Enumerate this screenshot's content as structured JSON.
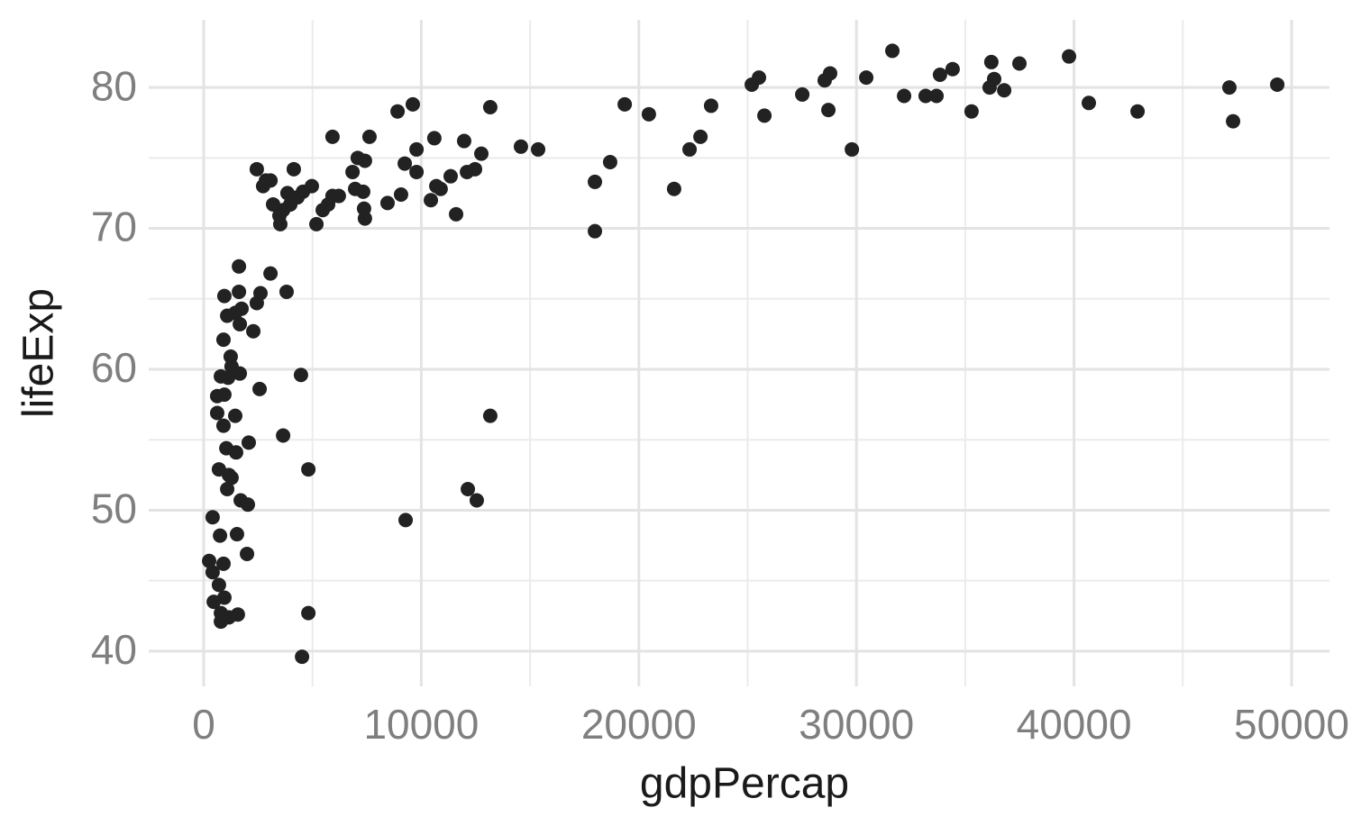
{
  "chart_data": {
    "type": "scatter",
    "xlabel": "gdpPercap",
    "ylabel": "lifeExp",
    "color": "#222222",
    "grid": true,
    "xlim": [
      -2527,
      51740
    ],
    "ylim": [
      37.5,
      84.8
    ],
    "xticks": [
      0,
      10000,
      20000,
      30000,
      40000,
      50000
    ],
    "yticks": [
      40,
      50,
      60,
      70,
      80
    ],
    "xminor": [
      5000,
      15000,
      25000,
      35000,
      45000
    ],
    "yminor": [
      45,
      55,
      65,
      75
    ],
    "x": [
      31650,
      39770,
      37490,
      36200,
      34420,
      33840,
      30450,
      28790,
      28540,
      25520,
      25190,
      27510,
      32190,
      33180,
      33680,
      36330,
      36120,
      36790,
      35290,
      40680,
      42920,
      47140,
      49340,
      47310,
      28710,
      25770,
      23320,
      22830,
      22330,
      29790,
      21620,
      20460,
      19350,
      18680,
      17980,
      17980,
      15370,
      14580,
      13170,
      12760,
      12470,
      12100,
      11970,
      11600,
      11350,
      10890,
      10690,
      10440,
      10600,
      9780,
      9780,
      9610,
      9240,
      8910,
      9070,
      8450,
      7620,
      7410,
      7080,
      6840,
      6960,
      7330,
      7370,
      7410,
      5920,
      6210,
      5920,
      5720,
      5470,
      4970,
      5180,
      4560,
      4140,
      4310,
      3850,
      3980,
      3650,
      3480,
      3520,
      3070,
      3190,
      2730,
      2860,
      2440,
      3070,
      3810,
      1620,
      2610,
      2440,
      1620,
      950,
      1080,
      1450,
      1740,
      1660,
      2280,
      910,
      1240,
      1280,
      790,
      1120,
      1660,
      4470,
      2570,
      620,
      950,
      620,
      1450,
      13170,
      910,
      3650,
      2070,
      1040,
      1490,
      700,
      4810,
      1160,
      1280,
      1080,
      12140,
      12550,
      1700,
      2030,
      410,
      9280,
      750,
      1530,
      1990,
      250,
      910,
      410,
      700,
      950,
      460,
      790,
      4810,
      1160,
      1570,
      790,
      4520
    ],
    "y": [
      82.6,
      82.2,
      81.7,
      81.8,
      81.3,
      80.9,
      80.7,
      81.0,
      80.5,
      80.7,
      80.2,
      79.5,
      79.4,
      79.4,
      79.4,
      80.6,
      80.0,
      79.8,
      78.3,
      78.9,
      78.3,
      80.0,
      80.2,
      77.6,
      78.4,
      78.0,
      78.7,
      76.5,
      75.6,
      75.6,
      72.8,
      78.1,
      78.8,
      74.7,
      73.3,
      69.8,
      75.6,
      75.8,
      78.6,
      75.3,
      74.2,
      74.0,
      76.2,
      71.0,
      73.7,
      72.8,
      73.0,
      72.0,
      76.4,
      74.0,
      75.6,
      78.8,
      74.6,
      78.3,
      72.4,
      71.8,
      76.5,
      74.8,
      75.0,
      74.0,
      72.8,
      72.6,
      71.4,
      70.7,
      76.5,
      72.3,
      72.3,
      71.7,
      71.3,
      73.0,
      70.3,
      72.6,
      74.2,
      72.2,
      72.5,
      71.7,
      71.3,
      70.9,
      70.3,
      73.4,
      71.7,
      73.0,
      73.4,
      74.2,
      66.8,
      65.5,
      67.3,
      65.4,
      64.7,
      65.5,
      65.2,
      63.8,
      64.0,
      64.3,
      63.2,
      62.7,
      62.1,
      60.9,
      60.2,
      59.5,
      59.4,
      59.7,
      59.6,
      58.6,
      58.1,
      58.2,
      56.9,
      56.7,
      56.7,
      56.0,
      55.3,
      54.8,
      54.4,
      54.1,
      52.9,
      52.9,
      52.5,
      52.3,
      51.5,
      51.5,
      50.7,
      50.7,
      50.4,
      49.5,
      49.3,
      48.2,
      48.3,
      46.9,
      46.4,
      46.2,
      45.6,
      44.7,
      43.8,
      43.5,
      42.7,
      42.7,
      42.4,
      42.6,
      42.1,
      39.6
    ]
  }
}
